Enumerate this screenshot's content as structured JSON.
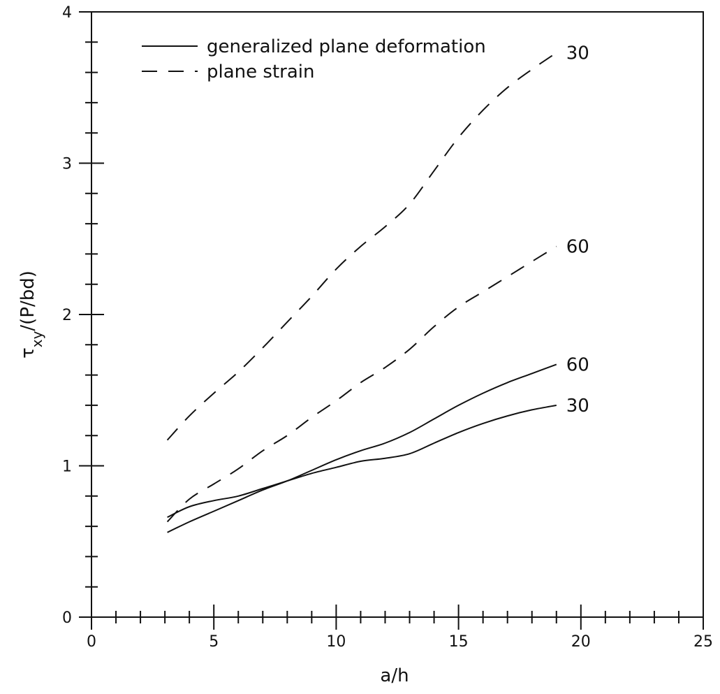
{
  "chart_data": {
    "type": "line",
    "title": "",
    "xlabel": "a/h",
    "ylabel": "τxy/(P/bd)",
    "ylabel_parts": {
      "symbol": "τ",
      "subscript": "xy",
      "rest": "/(P/bd)"
    },
    "xlim": [
      0,
      25
    ],
    "ylim": [
      0,
      4
    ],
    "xticks": [
      0,
      5,
      10,
      15,
      20,
      25
    ],
    "yticks": [
      0,
      1,
      2,
      3,
      4
    ],
    "grid": false,
    "legend": {
      "position": "top-left",
      "entries": [
        {
          "label": "generalized plane deformation",
          "style": "solid"
        },
        {
          "label": "plane strain",
          "style": "dashed"
        }
      ]
    },
    "series": [
      {
        "label": "30",
        "style": "dashed",
        "x": [
          3.1,
          4,
          5,
          6,
          7,
          8,
          9,
          10,
          11,
          12,
          13,
          14,
          15,
          16,
          17,
          18,
          19
        ],
        "y": [
          1.17,
          1.33,
          1.48,
          1.62,
          1.78,
          1.95,
          2.12,
          2.3,
          2.45,
          2.58,
          2.73,
          2.95,
          3.17,
          3.35,
          3.5,
          3.62,
          3.73
        ]
      },
      {
        "label": "60",
        "style": "dashed",
        "x": [
          3.1,
          4,
          5,
          6,
          7,
          8,
          9,
          10,
          11,
          12,
          13,
          14,
          15,
          16,
          17,
          18,
          19
        ],
        "y": [
          0.63,
          0.78,
          0.88,
          0.98,
          1.1,
          1.2,
          1.32,
          1.43,
          1.55,
          1.65,
          1.77,
          1.92,
          2.05,
          2.15,
          2.25,
          2.35,
          2.45
        ]
      },
      {
        "label": "60",
        "style": "solid",
        "x": [
          3.1,
          4,
          5,
          6,
          7,
          8,
          9,
          10,
          11,
          12,
          13,
          14,
          15,
          16,
          17,
          18,
          19
        ],
        "y": [
          0.56,
          0.63,
          0.7,
          0.77,
          0.84,
          0.9,
          0.97,
          1.04,
          1.1,
          1.15,
          1.22,
          1.31,
          1.4,
          1.48,
          1.55,
          1.61,
          1.67
        ]
      },
      {
        "label": "30",
        "style": "solid",
        "x": [
          3.1,
          4,
          5,
          6,
          7,
          8,
          9,
          10,
          11,
          12,
          13,
          14,
          15,
          16,
          17,
          18,
          19
        ],
        "y": [
          0.66,
          0.73,
          0.77,
          0.8,
          0.85,
          0.9,
          0.95,
          0.99,
          1.03,
          1.05,
          1.08,
          1.15,
          1.22,
          1.28,
          1.33,
          1.37,
          1.4
        ]
      }
    ]
  }
}
